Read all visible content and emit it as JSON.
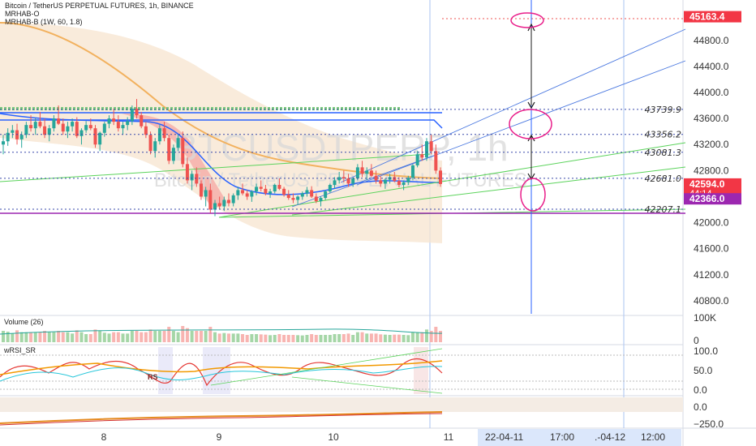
{
  "header": {
    "title": "Bitcoin / TetherUS PERPETUAL FUTURES, 1h, BINANCE",
    "ind1": "MRHAB-O",
    "ind2": "MRHAB-B (1W, 60, 1.8)"
  },
  "watermark": {
    "symbol": "BTCUSDTPERP, 1h",
    "name": "Bitcoin / TetherUS PERPETUAL FUTURES"
  },
  "colors": {
    "up": "#26a69a",
    "down": "#ef5350",
    "accent": "#2962ff",
    "hline": "#e91e63",
    "target": "#ff0000",
    "purple": "#9c27b0"
  },
  "chart_data": {
    "type": "candlestick",
    "symbol": "Bitcoin / TetherUS PERPETUAL FUTURES",
    "interval": "1h",
    "exchange": "BINANCE",
    "ylim": [
      40600,
      45420
    ],
    "yticks": [
      40800,
      41200,
      41600,
      42000,
      42400,
      42800,
      43200,
      43600,
      44000,
      44400,
      44800
    ],
    "xticks": [
      "8",
      "9",
      "10",
      "11"
    ],
    "time_badges": [
      "22-04-11",
      "17:00",
      ".-04-12",
      "12:00"
    ],
    "price_lines": [
      {
        "label": "43739.9",
        "value": 43739.9
      },
      {
        "label": "43356.2",
        "value": 43356.2
      },
      {
        "label": "43081.3",
        "value": 43081.3
      },
      {
        "label": "42681.0",
        "value": 42681.0
      },
      {
        "label": "42207.1",
        "value": 42207.1
      }
    ],
    "tags": [
      {
        "label": "45163.4",
        "value": 45163.4,
        "color": "#f23645"
      },
      {
        "label": "42594.0",
        "value": 42594.0,
        "color": "#f23645",
        "sub": "44:14"
      },
      {
        "label": "42366.0",
        "value": 42366.0,
        "color": "#9c27b0"
      }
    ],
    "candles": [
      [
        43200,
        43350,
        43050,
        43250
      ],
      [
        43250,
        43450,
        43180,
        43380
      ],
      [
        43380,
        43500,
        43300,
        43420
      ],
      [
        43420,
        43520,
        43200,
        43280
      ],
      [
        43280,
        43400,
        43150,
        43350
      ],
      [
        43350,
        43550,
        43300,
        43500
      ],
      [
        43500,
        43650,
        43400,
        43450
      ],
      [
        43450,
        43600,
        43350,
        43550
      ],
      [
        43550,
        43700,
        43450,
        43480
      ],
      [
        43480,
        43600,
        43300,
        43350
      ],
      [
        43350,
        43500,
        43250,
        43450
      ],
      [
        43450,
        43650,
        43400,
        43600
      ],
      [
        43600,
        43800,
        43500,
        43520
      ],
      [
        43520,
        43600,
        43350,
        43400
      ],
      [
        43400,
        43550,
        43300,
        43480
      ],
      [
        43480,
        43600,
        43400,
        43550
      ],
      [
        43550,
        43620,
        43300,
        43330
      ],
      [
        43330,
        43450,
        43200,
        43420
      ],
      [
        43420,
        43560,
        43380,
        43500
      ],
      [
        43500,
        43600,
        43420,
        43450
      ],
      [
        43450,
        43500,
        43150,
        43200
      ],
      [
        43200,
        43400,
        43100,
        43380
      ],
      [
        43380,
        43550,
        43320,
        43520
      ],
      [
        43520,
        43650,
        43450,
        43600
      ],
      [
        43600,
        43750,
        43500,
        43550
      ],
      [
        43550,
        43650,
        43400,
        43450
      ],
      [
        43450,
        43550,
        43350,
        43500
      ],
      [
        43500,
        43620,
        43420,
        43560
      ],
      [
        43560,
        43800,
        43500,
        43750
      ],
      [
        43750,
        43900,
        43600,
        43650
      ],
      [
        43650,
        43700,
        43450,
        43480
      ],
      [
        43480,
        43550,
        43300,
        43350
      ],
      [
        43350,
        43400,
        43050,
        43100
      ],
      [
        43100,
        43300,
        43000,
        43250
      ],
      [
        43250,
        43500,
        43200,
        43450
      ],
      [
        43450,
        43550,
        43250,
        43300
      ],
      [
        43300,
        43350,
        42900,
        42950
      ],
      [
        42950,
        43200,
        42900,
        43150
      ],
      [
        43150,
        43350,
        43100,
        43300
      ],
      [
        43300,
        43400,
        42850,
        42900
      ],
      [
        42900,
        43000,
        42600,
        42650
      ],
      [
        42650,
        42800,
        42500,
        42750
      ],
      [
        42750,
        42850,
        42550,
        42600
      ],
      [
        42600,
        42650,
        42350,
        42400
      ],
      [
        42400,
        42550,
        42250,
        42500
      ],
      [
        42500,
        42600,
        42150,
        42200
      ],
      [
        42200,
        42350,
        42100,
        42300
      ],
      [
        42300,
        42400,
        42200,
        42250
      ],
      [
        42250,
        42400,
        42180,
        42350
      ],
      [
        42350,
        42450,
        42250,
        42300
      ],
      [
        42300,
        42450,
        42250,
        42420
      ],
      [
        42420,
        42550,
        42350,
        42500
      ],
      [
        42500,
        42600,
        42420,
        42450
      ],
      [
        42450,
        42500,
        42350,
        42400
      ],
      [
        42400,
        42500,
        42320,
        42480
      ],
      [
        42480,
        42600,
        42420,
        42550
      ],
      [
        42550,
        42650,
        42480,
        42520
      ],
      [
        42520,
        42580,
        42420,
        42450
      ],
      [
        42450,
        42520,
        42380,
        42480
      ],
      [
        42480,
        42600,
        42450,
        42580
      ],
      [
        42580,
        42680,
        42500,
        42520
      ],
      [
        42520,
        42550,
        42400,
        42430
      ],
      [
        42430,
        42500,
        42350,
        42380
      ],
      [
        42380,
        42450,
        42300,
        42350
      ],
      [
        42350,
        42420,
        42280,
        42400
      ],
      [
        42400,
        42480,
        42350,
        42450
      ],
      [
        42450,
        42550,
        42400,
        42500
      ],
      [
        42500,
        42560,
        42380,
        42400
      ],
      [
        42400,
        42450,
        42300,
        42330
      ],
      [
        42330,
        42400,
        42250,
        42380
      ],
      [
        42380,
        42500,
        42350,
        42480
      ],
      [
        42480,
        42600,
        42450,
        42580
      ],
      [
        42580,
        42700,
        42520,
        42650
      ],
      [
        42650,
        42780,
        42600,
        42700
      ],
      [
        42700,
        42800,
        42620,
        42680
      ],
      [
        42680,
        42750,
        42550,
        42600
      ],
      [
        42600,
        42700,
        42550,
        42680
      ],
      [
        42680,
        42900,
        42650,
        42850
      ],
      [
        42850,
        42950,
        42700,
        42750
      ],
      [
        42750,
        42850,
        42650,
        42800
      ],
      [
        42800,
        42900,
        42700,
        42720
      ],
      [
        42720,
        42800,
        42600,
        42650
      ],
      [
        42650,
        42720,
        42550,
        42600
      ],
      [
        42600,
        42680,
        42520,
        42660
      ],
      [
        42660,
        42750,
        42600,
        42700
      ],
      [
        42700,
        42780,
        42620,
        42640
      ],
      [
        42640,
        42700,
        42540,
        42580
      ],
      [
        42580,
        42650,
        42500,
        42620
      ],
      [
        42620,
        42720,
        42580,
        42690
      ],
      [
        42690,
        42900,
        42650,
        42880
      ],
      [
        42880,
        43100,
        42850,
        43050
      ],
      [
        43050,
        43200,
        42950,
        43000
      ],
      [
        43000,
        43300,
        42950,
        43250
      ],
      [
        43250,
        43350,
        43050,
        43100
      ],
      [
        43100,
        43200,
        42750,
        42800
      ],
      [
        42800,
        42850,
        42550,
        42594
      ]
    ]
  }
}
